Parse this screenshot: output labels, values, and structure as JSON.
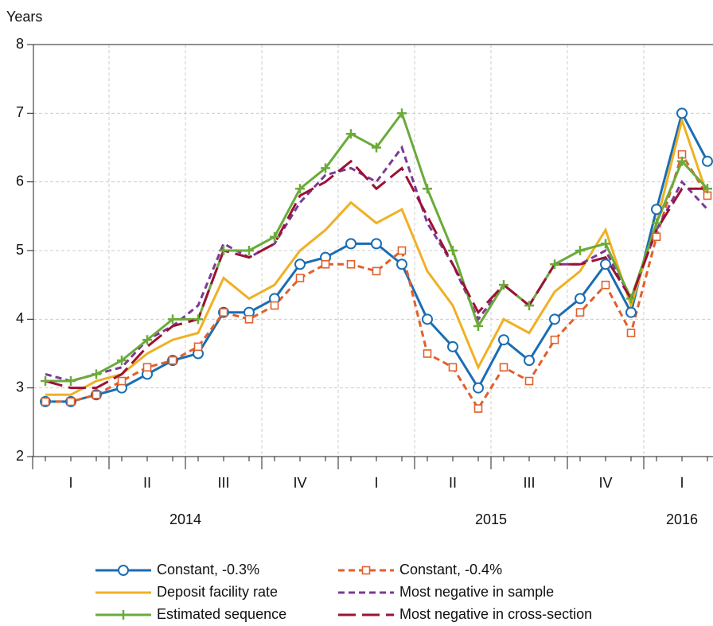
{
  "chart_data": {
    "type": "line",
    "y_label": "Years",
    "categories": [
      null,
      null,
      null,
      null,
      null,
      null,
      null,
      null,
      null,
      null,
      null,
      null,
      null,
      null,
      null,
      null,
      null,
      null,
      null,
      null,
      null,
      null,
      null,
      null,
      null,
      null,
      null
    ],
    "quarter_labels": [
      "I",
      "II",
      "III",
      "IV",
      "I",
      "II",
      "III",
      "IV",
      "I"
    ],
    "year_labels": [
      "2014",
      "2015",
      "2016"
    ],
    "ylim": [
      2,
      8
    ],
    "yticks": [
      2,
      3,
      4,
      5,
      6,
      7,
      8
    ],
    "grid": true,
    "series": [
      {
        "name": "Constant, -0.3%",
        "color": "#1a6db3",
        "dash": "solid",
        "marker": "circle",
        "values": [
          2.8,
          2.8,
          2.9,
          3.0,
          3.2,
          3.4,
          3.5,
          4.1,
          4.1,
          4.3,
          4.8,
          4.9,
          5.1,
          5.1,
          4.8,
          4.0,
          3.6,
          3.0,
          3.7,
          3.4,
          4.0,
          4.3,
          4.8,
          4.1,
          5.6,
          7.0,
          6.3
        ]
      },
      {
        "name": "Constant, -0.4%",
        "color": "#e0602c",
        "dash": "short",
        "marker": "square",
        "values": [
          2.8,
          2.8,
          2.9,
          3.1,
          3.3,
          3.4,
          3.6,
          4.1,
          4.0,
          4.2,
          4.6,
          4.8,
          4.8,
          4.7,
          5.0,
          3.5,
          3.3,
          2.7,
          3.3,
          3.1,
          3.7,
          4.1,
          4.5,
          3.8,
          5.2,
          6.4,
          5.8
        ]
      },
      {
        "name": "Deposit facility rate",
        "color": "#f0b023",
        "dash": "solid",
        "marker": "none",
        "values": [
          2.9,
          2.9,
          3.1,
          3.2,
          3.5,
          3.7,
          3.8,
          4.6,
          4.3,
          4.5,
          5.0,
          5.3,
          5.7,
          5.4,
          5.6,
          4.7,
          4.2,
          3.3,
          4.0,
          3.8,
          4.4,
          4.7,
          5.3,
          4.2,
          5.4,
          6.9,
          5.8
        ]
      },
      {
        "name": "Most negative in sample",
        "color": "#7b3a96",
        "dash": "short",
        "marker": "none",
        "values": [
          3.2,
          3.1,
          3.2,
          3.3,
          3.7,
          3.9,
          4.2,
          5.1,
          4.9,
          5.1,
          5.7,
          6.1,
          6.2,
          6.0,
          6.5,
          5.4,
          4.8,
          4.0,
          4.5,
          4.2,
          4.8,
          4.8,
          5.0,
          4.3,
          5.3,
          6.0,
          5.6
        ]
      },
      {
        "name": "Estimated sequence",
        "color": "#6aab3a",
        "dash": "solid",
        "marker": "plus",
        "values": [
          3.1,
          3.1,
          3.2,
          3.4,
          3.7,
          4.0,
          4.0,
          5.0,
          5.0,
          5.2,
          5.9,
          6.2,
          6.7,
          6.5,
          7.0,
          5.9,
          5.0,
          3.9,
          4.5,
          4.2,
          4.8,
          5.0,
          5.1,
          4.3,
          5.4,
          6.3,
          5.9
        ]
      },
      {
        "name": "Most negative in cross-section",
        "color": "#9b1235",
        "dash": "long",
        "marker": "none",
        "values": [
          3.1,
          3.0,
          3.0,
          3.2,
          3.6,
          3.9,
          4.0,
          5.0,
          4.9,
          5.1,
          5.8,
          6.0,
          6.3,
          5.9,
          6.2,
          5.5,
          4.8,
          4.1,
          4.5,
          4.2,
          4.8,
          4.8,
          4.9,
          4.3,
          5.3,
          5.9,
          5.9
        ]
      }
    ]
  }
}
